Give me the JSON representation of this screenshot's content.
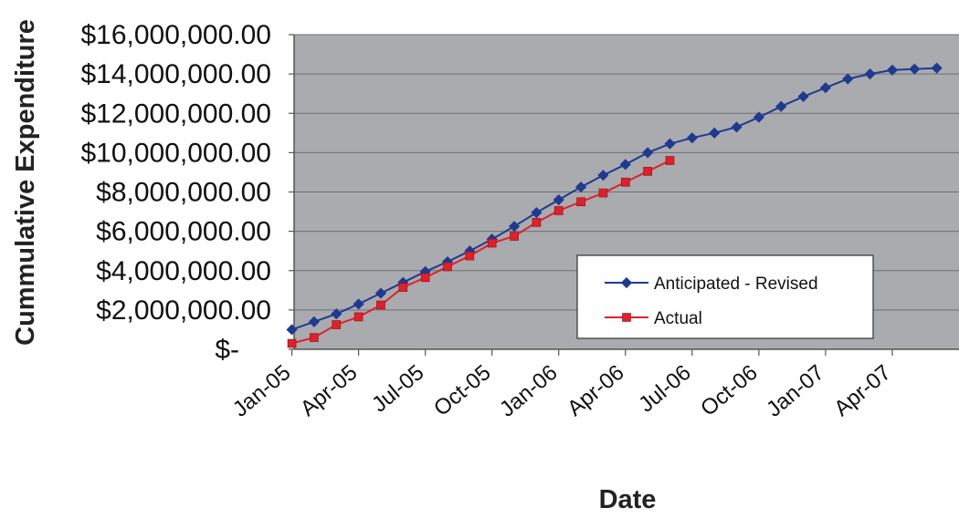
{
  "chart_data": {
    "type": "line",
    "title": "",
    "xlabel": "Date",
    "ylabel": "Cummulative Expenditure",
    "x_tick_labels": [
      "Jan-05",
      "Apr-05",
      "Jul-05",
      "Oct-05",
      "Jan-06",
      "Apr-06",
      "Jul-06",
      "Oct-06",
      "Jan-07",
      "Apr-07"
    ],
    "y_tick_labels": [
      "$-",
      "$2,000,000.00",
      "$4,000,000.00",
      "$6,000,000.00",
      "$8,000,000.00",
      "$10,000,000.00",
      "$12,000,000.00",
      "$14,000,000.00",
      "$16,000,000.00"
    ],
    "xlim": [
      "2005-01",
      "2007-07"
    ],
    "ylim": [
      0,
      16000000
    ],
    "grid": "horizontal",
    "legend_position": "lower-right",
    "plot_background": "#a9abae",
    "series": [
      {
        "name": "Anticipated - Revised",
        "color": "#1f3a8f",
        "marker": "diamond",
        "x": [
          "2005-01",
          "2005-02",
          "2005-03",
          "2005-04",
          "2005-05",
          "2005-06",
          "2005-07",
          "2005-08",
          "2005-09",
          "2005-10",
          "2005-11",
          "2005-12",
          "2006-01",
          "2006-02",
          "2006-03",
          "2006-04",
          "2006-05",
          "2006-06",
          "2006-07",
          "2006-08",
          "2006-09",
          "2006-10",
          "2006-11",
          "2006-12",
          "2007-01",
          "2007-02",
          "2007-03",
          "2007-04",
          "2007-05",
          "2007-06"
        ],
        "values": [
          1000000,
          1400000,
          1800000,
          2300000,
          2850000,
          3400000,
          3950000,
          4450000,
          5000000,
          5600000,
          6250000,
          6950000,
          7600000,
          8250000,
          8850000,
          9400000,
          10000000,
          10450000,
          10750000,
          11000000,
          11300000,
          11800000,
          12350000,
          12850000,
          13300000,
          13750000,
          14000000,
          14200000,
          14250000,
          14300000
        ]
      },
      {
        "name": "Actual",
        "color": "#e0202a",
        "marker": "square",
        "x": [
          "2005-01",
          "2005-02",
          "2005-03",
          "2005-04",
          "2005-05",
          "2005-06",
          "2005-07",
          "2005-08",
          "2005-09",
          "2005-10",
          "2005-11",
          "2005-12",
          "2006-01",
          "2006-02",
          "2006-03",
          "2006-04",
          "2006-05",
          "2006-06"
        ],
        "values": [
          300000,
          600000,
          1250000,
          1650000,
          2250000,
          3150000,
          3650000,
          4200000,
          4750000,
          5400000,
          5750000,
          6450000,
          7050000,
          7500000,
          7950000,
          8500000,
          9050000,
          9600000
        ]
      }
    ]
  }
}
